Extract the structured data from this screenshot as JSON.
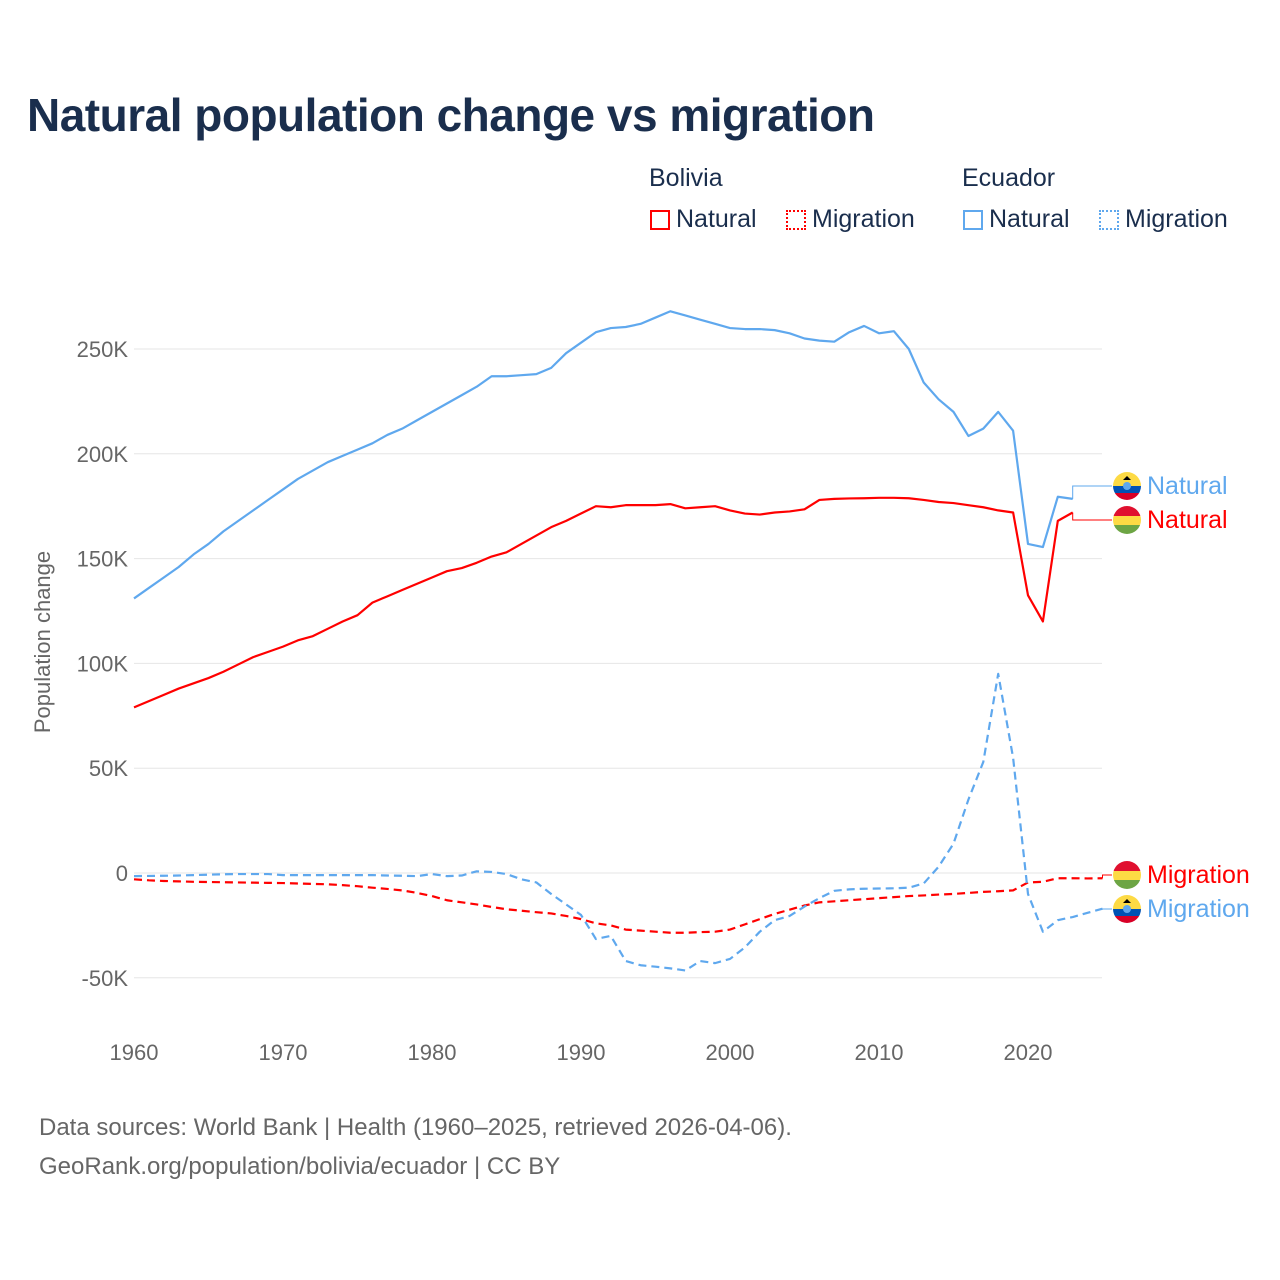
{
  "title": "Natural population change vs migration",
  "legend": {
    "groups": [
      {
        "name": "Bolivia",
        "items": [
          "Natural",
          "Migration"
        ],
        "color": "#ff0000"
      },
      {
        "name": "Ecuador",
        "items": [
          "Natural",
          "Migration"
        ],
        "color": "#5fa8ee"
      }
    ]
  },
  "source": {
    "line1": "Data sources: World Bank | Health (1960–2025, retrieved 2026-04-06).",
    "line2": "GeoRank.org/population/bolivia/ecuador | CC BY"
  },
  "chart_data": {
    "type": "line",
    "title": "Natural population change vs migration",
    "xlabel": "",
    "ylabel": "Population change",
    "xlim": [
      1960,
      2025
    ],
    "ylim": [
      -60000,
      280000
    ],
    "x_ticks": [
      1960,
      1970,
      1980,
      1990,
      2000,
      2010,
      2020
    ],
    "x_tick_labels": [
      "1960",
      "1970",
      "1980",
      "1990",
      "2000",
      "2010",
      "2020"
    ],
    "y_ticks": [
      -50000,
      0,
      50000,
      100000,
      150000,
      200000,
      250000
    ],
    "y_tick_labels": [
      "-50K",
      "0",
      "50K",
      "100K",
      "150K",
      "200K",
      "250K"
    ],
    "grid": true,
    "legend_position": "top-right",
    "series": [
      {
        "name": "Ecuador Natural",
        "label": "Natural",
        "country": "Ecuador",
        "color": "#5fa8ee",
        "dash": false,
        "start": 1960,
        "values_k": [
          131,
          136,
          141,
          146,
          152,
          157,
          163,
          168,
          173,
          178,
          183,
          188,
          192,
          196,
          199,
          202,
          205,
          209,
          212,
          216,
          220,
          224,
          228,
          232,
          237,
          237,
          237.5,
          238,
          241,
          248,
          253,
          258,
          260,
          260.5,
          262,
          265,
          268,
          266,
          264,
          262,
          260,
          259.5,
          259.5,
          259,
          257.5,
          255,
          254,
          253.5,
          258,
          261,
          257.5,
          258.5,
          250,
          234,
          226,
          220,
          208.5,
          212,
          220,
          211,
          157,
          155.5,
          179.5,
          178.5
        ]
      },
      {
        "name": "Bolivia Natural",
        "label": "Natural",
        "country": "Bolivia",
        "color": "#ff0000",
        "dash": false,
        "start": 1960,
        "values_k": [
          79,
          82,
          85,
          88,
          90.5,
          93,
          96,
          99.5,
          103,
          105.5,
          108,
          111,
          113,
          116.5,
          120,
          123,
          129,
          132,
          135,
          138,
          141,
          144,
          145.5,
          148,
          151,
          153,
          157,
          161,
          165,
          168,
          171.5,
          175,
          174.5,
          175.5,
          175.5,
          175.5,
          176,
          174,
          174.5,
          175,
          173,
          171.5,
          171,
          172,
          172.5,
          173.5,
          178,
          178.5,
          178.7,
          178.8,
          179,
          179,
          178.8,
          178,
          177,
          176.5,
          175.5,
          174.5,
          173,
          172,
          132.5,
          120,
          168,
          172
        ]
      },
      {
        "name": "Bolivia Migration",
        "label": "Migration",
        "country": "Bolivia",
        "color": "#ff0000",
        "dash": true,
        "start": 1960,
        "values_k": [
          -3,
          -3.5,
          -3.8,
          -4,
          -4.2,
          -4.3,
          -4.4,
          -4.5,
          -4.6,
          -4.7,
          -4.8,
          -5,
          -5.2,
          -5.4,
          -5.8,
          -6.3,
          -7,
          -7.6,
          -8.3,
          -9.5,
          -11,
          -13,
          -14,
          -15,
          -16.2,
          -17.3,
          -18,
          -18.7,
          -19.3,
          -20.5,
          -22,
          -24,
          -25,
          -27,
          -27.5,
          -28,
          -28.5,
          -28.5,
          -28.2,
          -28,
          -27,
          -24.5,
          -22,
          -19.5,
          -17.5,
          -15.5,
          -14,
          -13.5,
          -13,
          -12.5,
          -12,
          -11.5,
          -11,
          -10.7,
          -10.3,
          -10,
          -9.5,
          -9,
          -8.7,
          -8.3,
          -4.5,
          -4.2,
          -2.5,
          -2.5,
          -2.6,
          -2.5
        ]
      },
      {
        "name": "Ecuador Migration",
        "label": "Migration",
        "country": "Ecuador",
        "color": "#5fa8ee",
        "dash": true,
        "start": 1960,
        "values_k": [
          -1.5,
          -1.4,
          -1.3,
          -1.2,
          -1,
          -0.8,
          -0.6,
          -0.5,
          -0.5,
          -0.5,
          -1,
          -1,
          -1,
          -1,
          -1,
          -1,
          -1,
          -1.2,
          -1.3,
          -1.5,
          -0.5,
          -1.5,
          -1.2,
          0.8,
          0.5,
          -0.5,
          -3,
          -4.5,
          -10,
          -15,
          -20,
          -31.5,
          -30,
          -42,
          -44,
          -44.7,
          -45.5,
          -46.5,
          -42,
          -43,
          -41,
          -35.5,
          -28,
          -22.5,
          -20.5,
          -16,
          -12,
          -8.5,
          -7.8,
          -7.5,
          -7.4,
          -7.3,
          -7,
          -5,
          3,
          14,
          35,
          53,
          95,
          55,
          -10,
          -28,
          -22.5,
          -21,
          -19,
          -17
        ]
      }
    ]
  }
}
